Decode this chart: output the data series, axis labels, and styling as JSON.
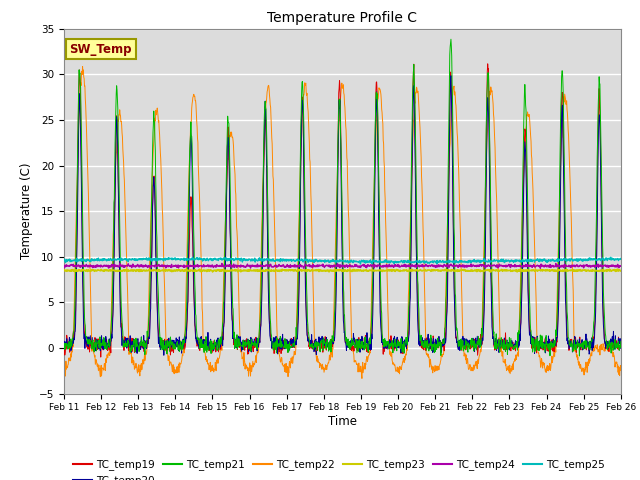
{
  "title": "Temperature Profile C",
  "xlabel": "Time",
  "ylabel": "Temperature (C)",
  "ylim": [
    -5,
    35
  ],
  "background_color": "#dcdcdc",
  "grid_color": "white",
  "series_colors": {
    "TC_temp19": "#dd0000",
    "TC_temp20": "#000099",
    "TC_temp21": "#00bb00",
    "TC_temp22": "#ff8800",
    "TC_temp23": "#cccc00",
    "TC_temp24": "#aa00aa",
    "TC_temp25": "#00bbbb"
  },
  "sw_temp_label": "SW_Temp",
  "sw_temp_box_color": "#ffff99",
  "sw_temp_border_color": "#999900",
  "sw_temp_text_color": "#880000",
  "x_tick_labels": [
    "Feb 11",
    "Feb 12",
    "Feb 13",
    "Feb 14",
    "Feb 15",
    "Feb 16",
    "Feb 17",
    "Feb 18",
    "Feb 19",
    "Feb 20",
    "Feb 21",
    "Feb 22",
    "Feb 23",
    "Feb 24",
    "Feb 25",
    "Feb 26"
  ]
}
